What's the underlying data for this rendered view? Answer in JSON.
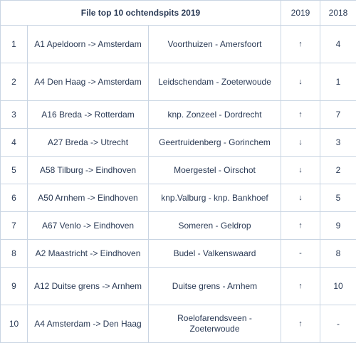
{
  "table": {
    "title": "File top 10 ochtendspits 2019",
    "col_2019": "2019",
    "col_2018": "2018",
    "rows": [
      {
        "rank": "1",
        "route": "A1 Apeldoorn -> Amsterdam",
        "section": "Voorthuizen - Amersfoort",
        "trend": "↑",
        "prev": "4"
      },
      {
        "rank": "2",
        "route": "A4 Den Haag -> Amsterdam",
        "section": "Leidschendam - Zoeterwoude",
        "trend": "↓",
        "prev": "1"
      },
      {
        "rank": "3",
        "route": "A16 Breda -> Rotterdam",
        "section": "knp. Zonzeel - Dordrecht",
        "trend": "↑",
        "prev": "7"
      },
      {
        "rank": "4",
        "route": "A27 Breda -> Utrecht",
        "section": "Geertruidenberg - Gorinchem",
        "trend": "↓",
        "prev": "3"
      },
      {
        "rank": "5",
        "route": "A58 Tilburg -> Eindhoven",
        "section": "Moergestel - Oirschot",
        "trend": "↓",
        "prev": "2"
      },
      {
        "rank": "6",
        "route": "A50 Arnhem -> Eindhoven",
        "section": "knp.Valburg - knp. Bankhoef",
        "trend": "↓",
        "prev": "5"
      },
      {
        "rank": "7",
        "route": "A67 Venlo -> Eindhoven",
        "section": "Someren - Geldrop",
        "trend": "↑",
        "prev": "9"
      },
      {
        "rank": "8",
        "route": "A2 Maastricht -> Eindhoven",
        "section": "Budel - Valkenswaard",
        "trend": "-",
        "prev": "8"
      },
      {
        "rank": "9",
        "route": "A12 Duitse grens -> Arnhem",
        "section": "Duitse grens - Arnhem",
        "trend": "↑",
        "prev": "10"
      },
      {
        "rank": "10",
        "route": "A4 Amsterdam -> Den Haag",
        "section": "Roelofarendsveen - Zoeterwoude",
        "trend": "↑",
        "prev": "-"
      }
    ]
  }
}
